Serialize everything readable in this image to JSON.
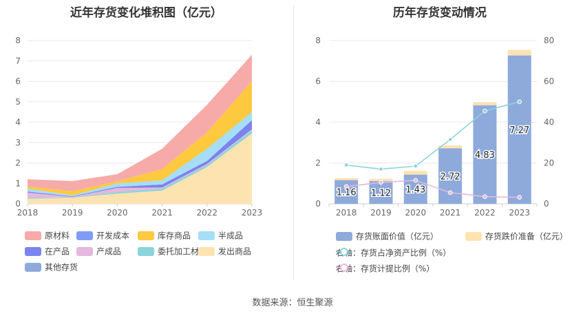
{
  "left_chart": {
    "title": "近年存货变化堆积图（亿元）",
    "chart_data": {
      "type": "area",
      "stacked": true,
      "x": [
        "2018",
        "2019",
        "2020",
        "2021",
        "2022",
        "2023"
      ],
      "ylim": [
        0,
        8
      ],
      "yticks": [
        0,
        1,
        2,
        3,
        4,
        5,
        6,
        7,
        8
      ],
      "grid": true,
      "legend_position": "bottom",
      "series": [
        {
          "name": "其他存货",
          "color": "#8eaadb",
          "values": [
            0,
            0,
            0,
            0,
            0,
            0
          ]
        },
        {
          "name": "发出商品",
          "color": "#fde3b0",
          "values": [
            0.25,
            0.3,
            0.5,
            0.65,
            1.8,
            3.45
          ]
        },
        {
          "name": "委托加工材料",
          "color": "#8ad4da",
          "values": [
            0.05,
            0.02,
            0.08,
            0.1,
            0.1,
            0.15
          ]
        },
        {
          "name": "产成品",
          "color": "#e6b8dc",
          "values": [
            0.25,
            0.02,
            0.2,
            0.05,
            0.05,
            0.05
          ]
        },
        {
          "name": "在产品",
          "color": "#7b84ee",
          "values": [
            0.05,
            0.03,
            0.05,
            0.15,
            0.15,
            0.45
          ]
        },
        {
          "name": "半成品",
          "color": "#a6ddf7",
          "values": [
            0.15,
            0.05,
            0.17,
            0.2,
            0.6,
            0.4
          ]
        },
        {
          "name": "库存商品",
          "color": "#fdc93f",
          "values": [
            0.1,
            0.2,
            0.1,
            0.55,
            0.8,
            1.5
          ]
        },
        {
          "name": "开发成本",
          "color": "#7f9cf5",
          "values": [
            0,
            0,
            0,
            0,
            0,
            0
          ]
        },
        {
          "name": "原材料",
          "color": "#f6aba8",
          "values": [
            0.35,
            0.5,
            0.35,
            1.0,
            1.35,
            1.3
          ]
        }
      ],
      "legend_order": [
        "原材料",
        "开发成本",
        "库存商品",
        "半成品",
        "在产品",
        "产成品",
        "委托加工材料",
        "发出商品",
        "其他存货"
      ]
    }
  },
  "right_chart": {
    "title": "历年存货变动情况",
    "chart_data": {
      "type": "bar",
      "categories": [
        "2018",
        "2019",
        "2020",
        "2021",
        "2022",
        "2023"
      ],
      "ylim": [
        0,
        8
      ],
      "yticks": [
        0,
        2,
        4,
        6,
        8
      ],
      "y2lim": [
        0,
        80
      ],
      "y2ticks": [
        0,
        20,
        40,
        60,
        80
      ],
      "grid": true,
      "legend_position": "bottom",
      "series": [
        {
          "name": "存货账面价值（亿元）",
          "kind": "bar",
          "axis": "left",
          "color": "#8eaadb",
          "values": [
            1.16,
            1.12,
            1.43,
            2.72,
            4.83,
            7.27
          ],
          "labels": [
            "1.16",
            "1.12",
            "1.43",
            "2.72",
            "4.83",
            "7.27"
          ]
        },
        {
          "name": "存货跌价准备（亿元）",
          "kind": "bar-stack",
          "axis": "left",
          "color": "#fde3b0",
          "values": [
            0.1,
            0.1,
            0.18,
            0.14,
            0.15,
            0.27
          ]
        },
        {
          "name": "右轴：存货占净资产比例（%）",
          "kind": "line",
          "axis": "right",
          "color": "#8ad4da",
          "values": [
            19,
            17,
            18.5,
            31.5,
            45.5,
            50
          ]
        },
        {
          "name": "右轴：存货计提比例（%）",
          "kind": "line",
          "axis": "right",
          "color": "#e6b8dc",
          "values": [
            8.5,
            10.5,
            11.5,
            5.5,
            3.5,
            3.2
          ]
        }
      ]
    }
  },
  "footer": {
    "source": "数据来源：恒生聚源"
  }
}
